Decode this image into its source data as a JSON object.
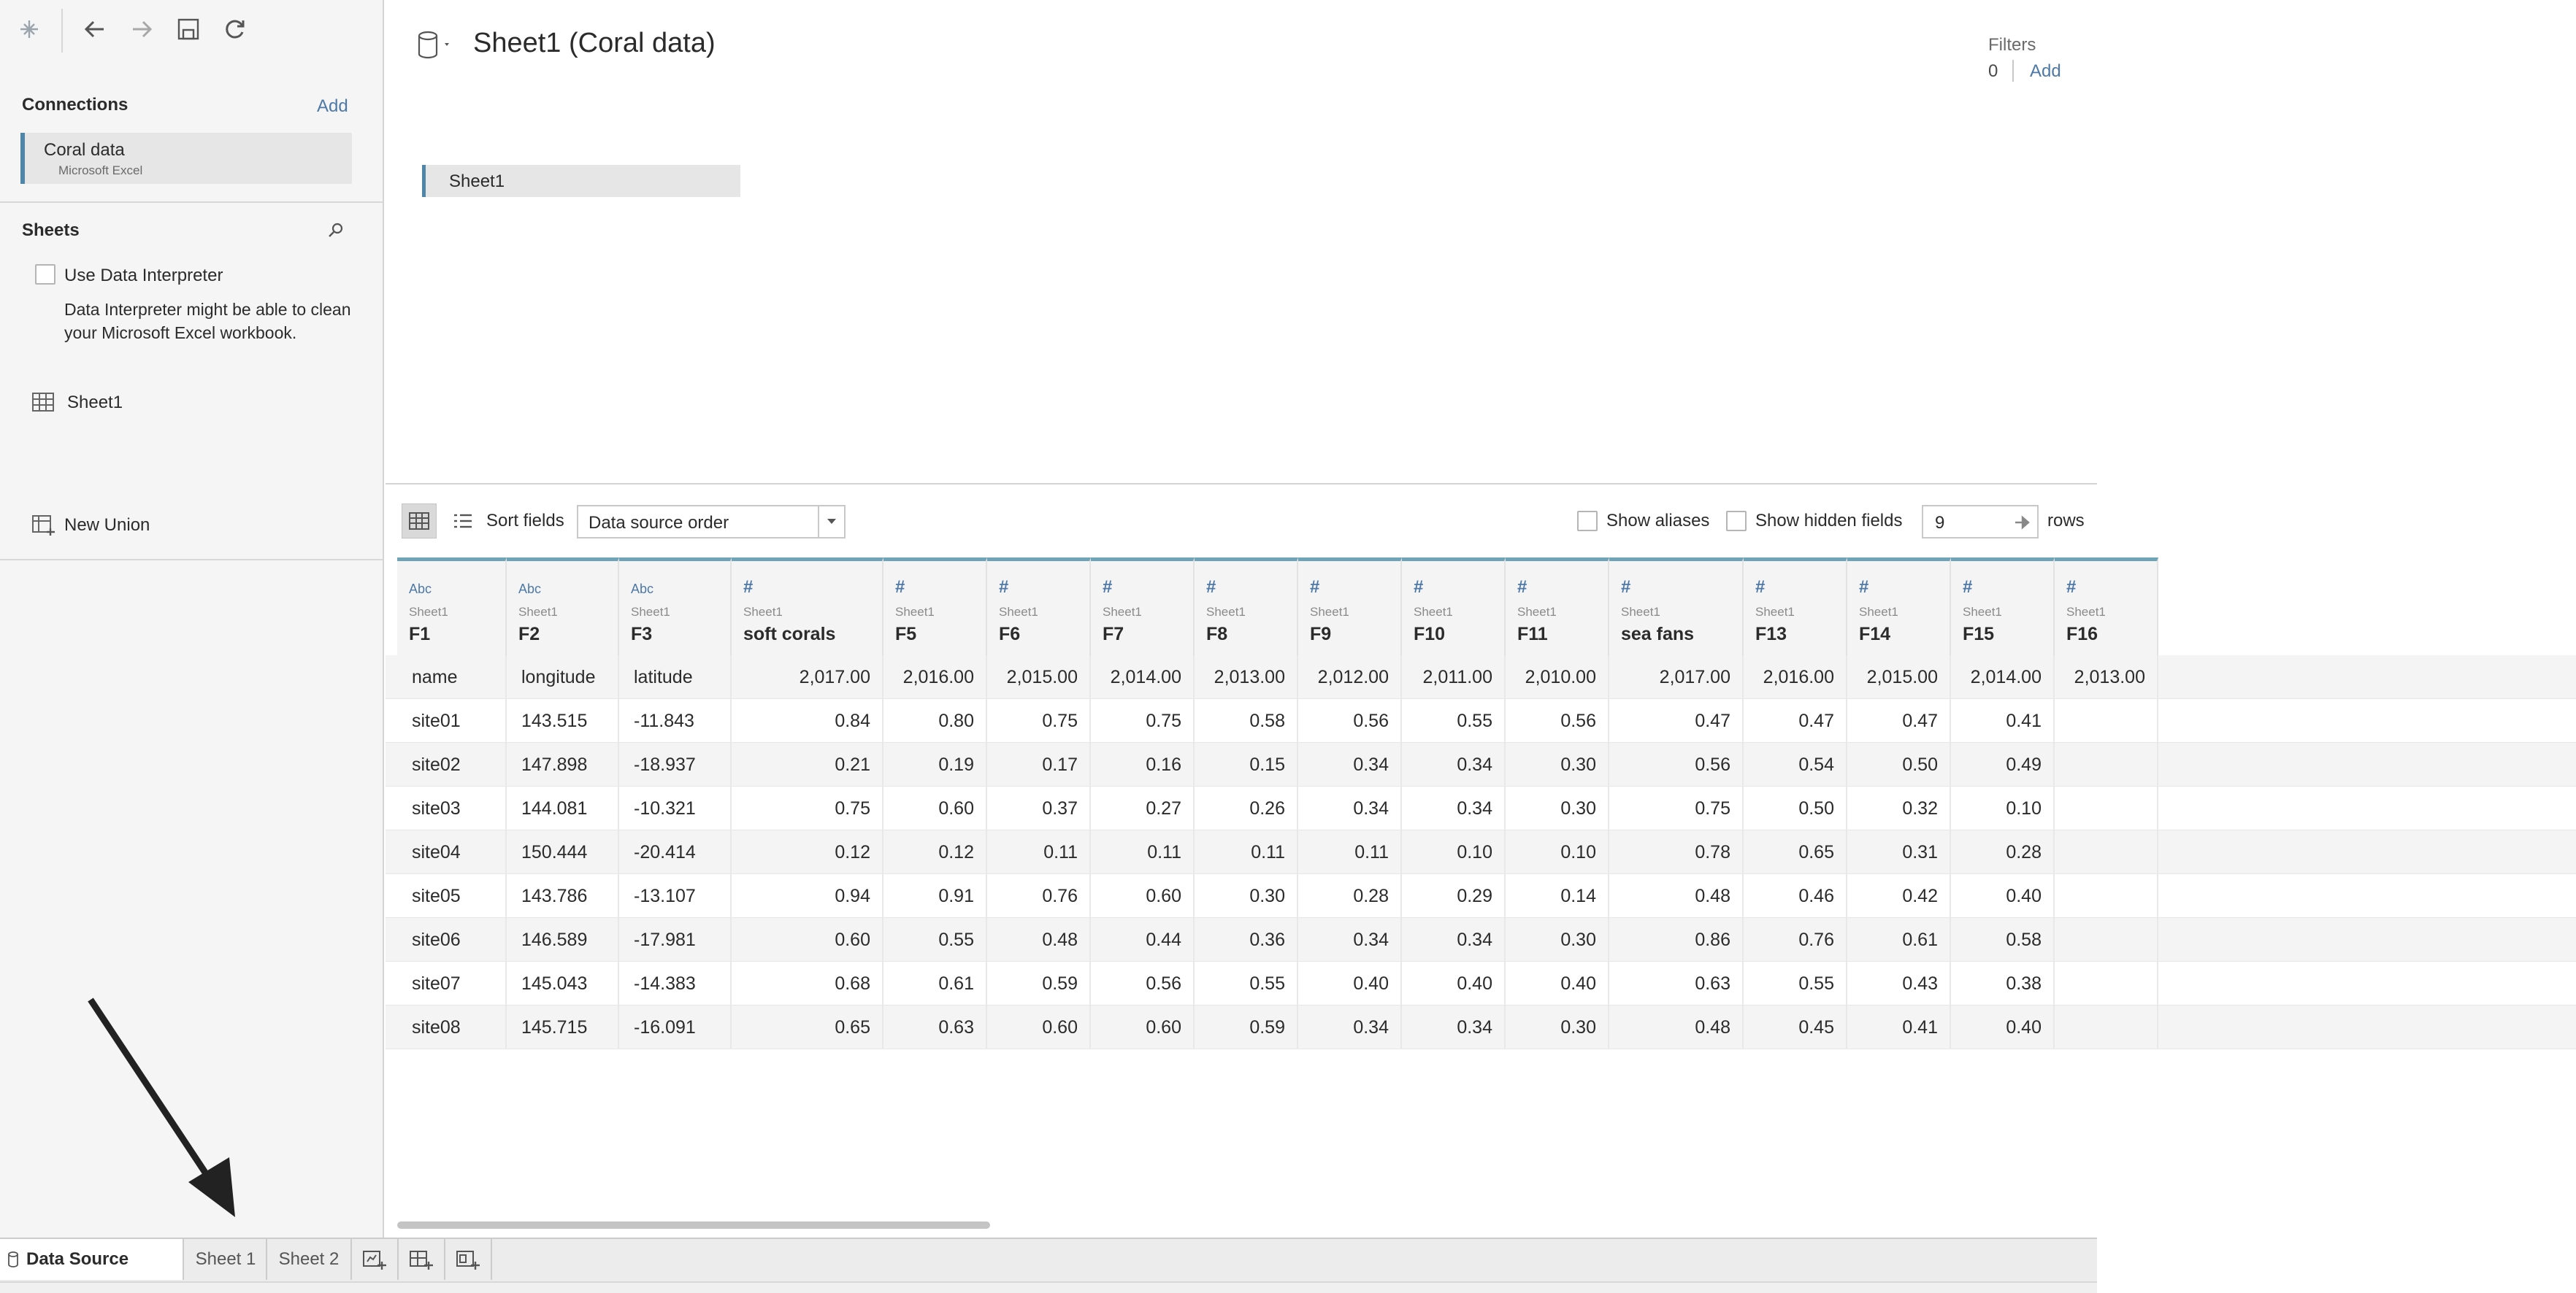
{
  "toolbar": {
    "logo_icon": "tableau-logo-icon",
    "back_icon": "arrow-left-icon",
    "forward_icon": "arrow-right-icon",
    "save_icon": "save-icon",
    "refresh_icon": "refresh-icon"
  },
  "connections": {
    "title": "Connections",
    "add_label": "Add",
    "items": [
      {
        "name": "Coral data",
        "type": "Microsoft Excel"
      }
    ]
  },
  "sheets": {
    "title": "Sheets",
    "interpreter_label": "Use Data Interpreter",
    "interpreter_checked": false,
    "interpreter_desc": "Data Interpreter might be able to clean your Microsoft Excel workbook.",
    "items": [
      {
        "name": "Sheet1"
      }
    ],
    "new_union_label": "New Union"
  },
  "datasource": {
    "title": "Sheet1 (Coral data)",
    "canvas_table": "Sheet1"
  },
  "filters": {
    "label": "Filters",
    "count": "0",
    "add_label": "Add"
  },
  "grid_toolbar": {
    "sort_label": "Sort fields",
    "sort_value": "Data source order",
    "show_aliases_label": "Show aliases",
    "show_hidden_label": "Show hidden fields",
    "rows_value": "9",
    "rows_label": "rows"
  },
  "grid": {
    "columns": [
      {
        "type": "Abc",
        "source": "Sheet1",
        "name": "F1"
      },
      {
        "type": "Abc",
        "source": "Sheet1",
        "name": "F2"
      },
      {
        "type": "Abc",
        "source": "Sheet1",
        "name": "F3"
      },
      {
        "type": "#",
        "source": "Sheet1",
        "name": "soft corals"
      },
      {
        "type": "#",
        "source": "Sheet1",
        "name": "F5"
      },
      {
        "type": "#",
        "source": "Sheet1",
        "name": "F6"
      },
      {
        "type": "#",
        "source": "Sheet1",
        "name": "F7"
      },
      {
        "type": "#",
        "source": "Sheet1",
        "name": "F8"
      },
      {
        "type": "#",
        "source": "Sheet1",
        "name": "F9"
      },
      {
        "type": "#",
        "source": "Sheet1",
        "name": "F10"
      },
      {
        "type": "#",
        "source": "Sheet1",
        "name": "F11"
      },
      {
        "type": "#",
        "source": "Sheet1",
        "name": "sea fans"
      },
      {
        "type": "#",
        "source": "Sheet1",
        "name": "F13"
      },
      {
        "type": "#",
        "source": "Sheet1",
        "name": "F14"
      },
      {
        "type": "#",
        "source": "Sheet1",
        "name": "F15"
      },
      {
        "type": "#",
        "source": "Sheet1",
        "name": "F16"
      }
    ],
    "rows": [
      [
        "name",
        "longitude",
        "latitude",
        "2,017.00",
        "2,016.00",
        "2,015.00",
        "2,014.00",
        "2,013.00",
        "2,012.00",
        "2,011.00",
        "2,010.00",
        "2,017.00",
        "2,016.00",
        "2,015.00",
        "2,014.00",
        "2,013.00"
      ],
      [
        "site01",
        "143.515",
        "-11.843",
        "0.84",
        "0.80",
        "0.75",
        "0.75",
        "0.58",
        "0.56",
        "0.55",
        "0.56",
        "0.47",
        "0.47",
        "0.47",
        "0.41",
        ""
      ],
      [
        "site02",
        "147.898",
        "-18.937",
        "0.21",
        "0.19",
        "0.17",
        "0.16",
        "0.15",
        "0.34",
        "0.34",
        "0.30",
        "0.56",
        "0.54",
        "0.50",
        "0.49",
        ""
      ],
      [
        "site03",
        "144.081",
        "-10.321",
        "0.75",
        "0.60",
        "0.37",
        "0.27",
        "0.26",
        "0.34",
        "0.34",
        "0.30",
        "0.75",
        "0.50",
        "0.32",
        "0.10",
        ""
      ],
      [
        "site04",
        "150.444",
        "-20.414",
        "0.12",
        "0.12",
        "0.11",
        "0.11",
        "0.11",
        "0.11",
        "0.10",
        "0.10",
        "0.78",
        "0.65",
        "0.31",
        "0.28",
        ""
      ],
      [
        "site05",
        "143.786",
        "-13.107",
        "0.94",
        "0.91",
        "0.76",
        "0.60",
        "0.30",
        "0.28",
        "0.29",
        "0.14",
        "0.48",
        "0.46",
        "0.42",
        "0.40",
        ""
      ],
      [
        "site06",
        "146.589",
        "-17.981",
        "0.60",
        "0.55",
        "0.48",
        "0.44",
        "0.36",
        "0.34",
        "0.34",
        "0.30",
        "0.86",
        "0.76",
        "0.61",
        "0.58",
        ""
      ],
      [
        "site07",
        "145.043",
        "-14.383",
        "0.68",
        "0.61",
        "0.59",
        "0.56",
        "0.55",
        "0.40",
        "0.40",
        "0.40",
        "0.63",
        "0.55",
        "0.43",
        "0.38",
        ""
      ],
      [
        "site08",
        "145.715",
        "-16.091",
        "0.65",
        "0.63",
        "0.60",
        "0.60",
        "0.59",
        "0.34",
        "0.34",
        "0.30",
        "0.48",
        "0.45",
        "0.41",
        "0.40",
        ""
      ]
    ]
  },
  "tabs": {
    "datasource_label": "Data Source",
    "sheet1_label": "Sheet 1",
    "sheet2_label": "Sheet 2",
    "new_sheet_icon": "new-worksheet-icon",
    "new_dashboard_icon": "new-dashboard-icon",
    "new_story_icon": "new-story-icon"
  },
  "colors": {
    "accent": "#4e79a7",
    "header_rule": "#6fa3b8",
    "connection_bar": "#4f86a8",
    "annotation_arrow": "#222222"
  }
}
